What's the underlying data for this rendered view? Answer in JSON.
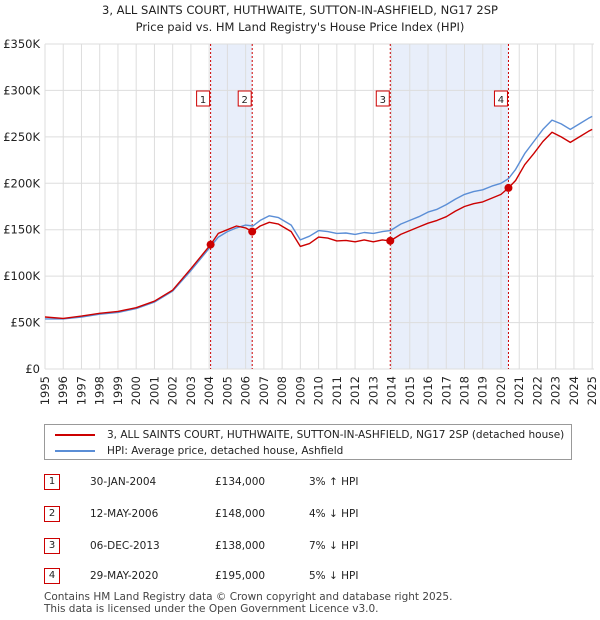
{
  "title": {
    "line1": "3, ALL SAINTS COURT, HUTHWAITE, SUTTON-IN-ASHFIELD, NG17 2SP",
    "line2": "Price paid vs. HM Land Registry's House Price Index (HPI)"
  },
  "colors": {
    "property": "#cc0000",
    "hpi": "#5b8ed6",
    "shade": "#e8eefa",
    "grid": "#dddddd"
  },
  "chart_data": {
    "type": "line",
    "title": "3, ALL SAINTS COURT, HUTHWAITE, SUTTON-IN-ASHFIELD, NG17 2SP",
    "subtitle": "Price paid vs. HM Land Registry's House Price Index (HPI)",
    "xlabel": "",
    "ylabel": "",
    "xlim": [
      1995,
      2025.1
    ],
    "ylim": [
      0,
      350000
    ],
    "y_ticks": [
      {
        "value": 0,
        "label": "£0"
      },
      {
        "value": 50000,
        "label": "£50K"
      },
      {
        "value": 100000,
        "label": "£100K"
      },
      {
        "value": 150000,
        "label": "£150K"
      },
      {
        "value": 200000,
        "label": "£200K"
      },
      {
        "value": 250000,
        "label": "£250K"
      },
      {
        "value": 300000,
        "label": "£300K"
      },
      {
        "value": 350000,
        "label": "£350K"
      }
    ],
    "x_ticks": [
      "1995",
      "1996",
      "1997",
      "1998",
      "1999",
      "2000",
      "2001",
      "2002",
      "2003",
      "2004",
      "2005",
      "2006",
      "2007",
      "2008",
      "2009",
      "2010",
      "2011",
      "2012",
      "2013",
      "2014",
      "2015",
      "2016",
      "2017",
      "2018",
      "2019",
      "2020",
      "2021",
      "2022",
      "2023",
      "2024",
      "2025"
    ],
    "shaded_spans": [
      [
        2004.08,
        2006.36
      ],
      [
        2013.93,
        2020.41
      ]
    ],
    "series": [
      {
        "name": "3, ALL SAINTS COURT, HUTHWAITE, SUTTON-IN-ASHFIELD, NG17 2SP (detached house)",
        "color": "#cc0000",
        "points": [
          [
            1995.0,
            56000
          ],
          [
            1996.0,
            54500
          ],
          [
            1997.0,
            57000
          ],
          [
            1998.0,
            60000
          ],
          [
            1999.0,
            62000
          ],
          [
            2000.0,
            66000
          ],
          [
            2001.0,
            73000
          ],
          [
            2002.0,
            85000
          ],
          [
            2003.0,
            108000
          ],
          [
            2004.08,
            134000
          ],
          [
            2004.5,
            146000
          ],
          [
            2005.0,
            150000
          ],
          [
            2005.5,
            154000
          ],
          [
            2006.0,
            152000
          ],
          [
            2006.36,
            148000
          ],
          [
            2006.8,
            154000
          ],
          [
            2007.3,
            158000
          ],
          [
            2007.8,
            156000
          ],
          [
            2008.5,
            148000
          ],
          [
            2009.0,
            132000
          ],
          [
            2009.5,
            135000
          ],
          [
            2010.0,
            142000
          ],
          [
            2010.5,
            141000
          ],
          [
            2011.0,
            138000
          ],
          [
            2011.5,
            138500
          ],
          [
            2012.0,
            137000
          ],
          [
            2012.5,
            139000
          ],
          [
            2013.0,
            137000
          ],
          [
            2013.5,
            139000
          ],
          [
            2013.93,
            138000
          ],
          [
            2014.5,
            145000
          ],
          [
            2015.0,
            149000
          ],
          [
            2015.5,
            153000
          ],
          [
            2016.0,
            157000
          ],
          [
            2016.5,
            160000
          ],
          [
            2017.0,
            164000
          ],
          [
            2017.5,
            170000
          ],
          [
            2018.0,
            175000
          ],
          [
            2018.5,
            178000
          ],
          [
            2019.0,
            180000
          ],
          [
            2019.5,
            184000
          ],
          [
            2020.0,
            188000
          ],
          [
            2020.41,
            195000
          ],
          [
            2020.8,
            203000
          ],
          [
            2021.3,
            220000
          ],
          [
            2021.8,
            232000
          ],
          [
            2022.3,
            245000
          ],
          [
            2022.8,
            255000
          ],
          [
            2023.3,
            250000
          ],
          [
            2023.8,
            244000
          ],
          [
            2024.3,
            250000
          ],
          [
            2024.8,
            256000
          ],
          [
            2025.0,
            258000
          ]
        ]
      },
      {
        "name": "HPI: Average price, detached house, Ashfield",
        "color": "#5b8ed6",
        "points": [
          [
            1995.0,
            54000
          ],
          [
            1996.0,
            54000
          ],
          [
            1997.0,
            56000
          ],
          [
            1998.0,
            59000
          ],
          [
            1999.0,
            61000
          ],
          [
            2000.0,
            65000
          ],
          [
            2001.0,
            72000
          ],
          [
            2002.0,
            84000
          ],
          [
            2003.0,
            106000
          ],
          [
            2004.0,
            130000
          ],
          [
            2004.5,
            142000
          ],
          [
            2005.0,
            148000
          ],
          [
            2005.5,
            152000
          ],
          [
            2006.0,
            155000
          ],
          [
            2006.4,
            154000
          ],
          [
            2006.8,
            160000
          ],
          [
            2007.3,
            165000
          ],
          [
            2007.8,
            163000
          ],
          [
            2008.5,
            155000
          ],
          [
            2009.0,
            139000
          ],
          [
            2009.5,
            143000
          ],
          [
            2010.0,
            149000
          ],
          [
            2010.5,
            148000
          ],
          [
            2011.0,
            146000
          ],
          [
            2011.5,
            146500
          ],
          [
            2012.0,
            145000
          ],
          [
            2012.5,
            147000
          ],
          [
            2013.0,
            146000
          ],
          [
            2013.5,
            148000
          ],
          [
            2013.93,
            149000
          ],
          [
            2014.5,
            156000
          ],
          [
            2015.0,
            160000
          ],
          [
            2015.5,
            164000
          ],
          [
            2016.0,
            169000
          ],
          [
            2016.5,
            172000
          ],
          [
            2017.0,
            177000
          ],
          [
            2017.5,
            183000
          ],
          [
            2018.0,
            188000
          ],
          [
            2018.5,
            191000
          ],
          [
            2019.0,
            193000
          ],
          [
            2019.5,
            197000
          ],
          [
            2020.0,
            200000
          ],
          [
            2020.41,
            205000
          ],
          [
            2020.8,
            215000
          ],
          [
            2021.3,
            232000
          ],
          [
            2021.8,
            245000
          ],
          [
            2022.3,
            258000
          ],
          [
            2022.8,
            268000
          ],
          [
            2023.3,
            264000
          ],
          [
            2023.8,
            258000
          ],
          [
            2024.3,
            264000
          ],
          [
            2024.8,
            270000
          ],
          [
            2025.0,
            272000
          ]
        ]
      }
    ],
    "sales": [
      {
        "label": "1",
        "x": 2004.08,
        "price": 134000
      },
      {
        "label": "2",
        "x": 2006.36,
        "price": 148000
      },
      {
        "label": "3",
        "x": 2013.93,
        "price": 138000
      },
      {
        "label": "4",
        "x": 2020.41,
        "price": 195000
      }
    ]
  },
  "legend": {
    "property": "3, ALL SAINTS COURT, HUTHWAITE, SUTTON-IN-ASHFIELD, NG17 2SP (detached house)",
    "hpi": "HPI: Average price, detached house, Ashfield"
  },
  "transactions": [
    {
      "num": "1",
      "date": "30-JAN-2004",
      "price": "£134,000",
      "hpi": "3% ↑ HPI"
    },
    {
      "num": "2",
      "date": "12-MAY-2006",
      "price": "£148,000",
      "hpi": "4% ↓ HPI"
    },
    {
      "num": "3",
      "date": "06-DEC-2013",
      "price": "£138,000",
      "hpi": "7% ↓ HPI"
    },
    {
      "num": "4",
      "date": "29-MAY-2020",
      "price": "£195,000",
      "hpi": "5% ↓ HPI"
    }
  ],
  "footer": {
    "line1": "Contains HM Land Registry data © Crown copyright and database right 2025.",
    "line2": "This data is licensed under the Open Government Licence v3.0."
  }
}
